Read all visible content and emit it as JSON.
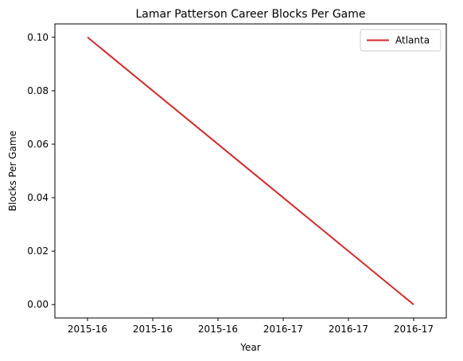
{
  "chart_data": {
    "type": "line",
    "title": "Lamar Patterson Career Blocks Per Game",
    "xlabel": "Year",
    "ylabel": "Blocks Per Game",
    "x_tick_labels": [
      "2015-16",
      "2015-16",
      "2015-16",
      "2016-17",
      "2016-17",
      "2016-17"
    ],
    "x_range": [
      -0.1,
      1.1
    ],
    "x_ticks": [
      0,
      0.2,
      0.4,
      0.6,
      0.8,
      1.0
    ],
    "y_ticks": [
      0.0,
      0.02,
      0.04,
      0.06,
      0.08,
      0.1
    ],
    "y_tick_labels": [
      "0.00",
      "0.02",
      "0.04",
      "0.06",
      "0.08",
      "0.10"
    ],
    "ylim": [
      -0.005,
      0.105
    ],
    "grid": false,
    "legend_position": "top-right",
    "series": [
      {
        "name": "Atlanta",
        "color": "#d62728",
        "points": [
          {
            "x": 0,
            "y": 0.1
          },
          {
            "x": 1,
            "y": 0.0
          }
        ]
      }
    ]
  }
}
